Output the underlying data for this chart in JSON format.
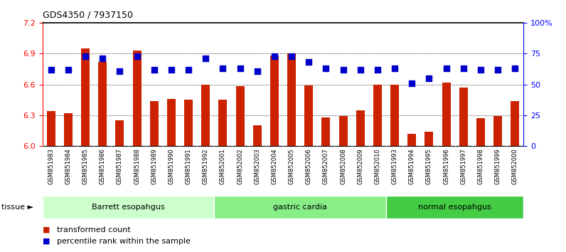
{
  "title": "GDS4350 / 7937150",
  "samples": [
    "GSM851983",
    "GSM851984",
    "GSM851985",
    "GSM851986",
    "GSM851987",
    "GSM851988",
    "GSM851989",
    "GSM851990",
    "GSM851991",
    "GSM851992",
    "GSM852001",
    "GSM852002",
    "GSM852003",
    "GSM852004",
    "GSM852005",
    "GSM852006",
    "GSM852007",
    "GSM852008",
    "GSM852009",
    "GSM852010",
    "GSM851993",
    "GSM851994",
    "GSM851995",
    "GSM851996",
    "GSM851997",
    "GSM851998",
    "GSM851999",
    "GSM852000"
  ],
  "transformed_count": [
    6.34,
    6.32,
    6.95,
    6.82,
    6.25,
    6.93,
    6.44,
    6.46,
    6.45,
    6.6,
    6.45,
    6.58,
    6.2,
    6.88,
    6.9,
    6.59,
    6.28,
    6.29,
    6.35,
    6.6,
    6.6,
    6.12,
    6.14,
    6.62,
    6.57,
    6.27,
    6.29,
    6.44
  ],
  "percentile_rank": [
    62,
    62,
    73,
    71,
    61,
    73,
    62,
    62,
    62,
    71,
    63,
    63,
    61,
    73,
    73,
    68,
    63,
    62,
    62,
    62,
    63,
    51,
    55,
    63,
    63,
    62,
    62,
    63
  ],
  "groups": [
    {
      "label": "Barrett esopahgus",
      "start": 0,
      "end": 10,
      "color": "#ccffcc"
    },
    {
      "label": "gastric cardia",
      "start": 10,
      "end": 20,
      "color": "#88ee88"
    },
    {
      "label": "normal esopahgus",
      "start": 20,
      "end": 28,
      "color": "#44cc44"
    }
  ],
  "ylim_left": [
    6.0,
    7.2
  ],
  "ylim_right": [
    0,
    100
  ],
  "yticks_left": [
    6.0,
    6.3,
    6.6,
    6.9,
    7.2
  ],
  "yticks_right": [
    0,
    25,
    50,
    75,
    100
  ],
  "ytick_labels_right": [
    "0",
    "25",
    "50",
    "75",
    "100%"
  ],
  "bar_color": "#cc2200",
  "dot_color": "#0000cc",
  "bar_width": 0.5,
  "background_color": "#ffffff",
  "plot_bg_color": "#ffffff",
  "xstrip_bg_color": "#cccccc",
  "legend_tc": "transformed count",
  "legend_pr": "percentile rank within the sample"
}
